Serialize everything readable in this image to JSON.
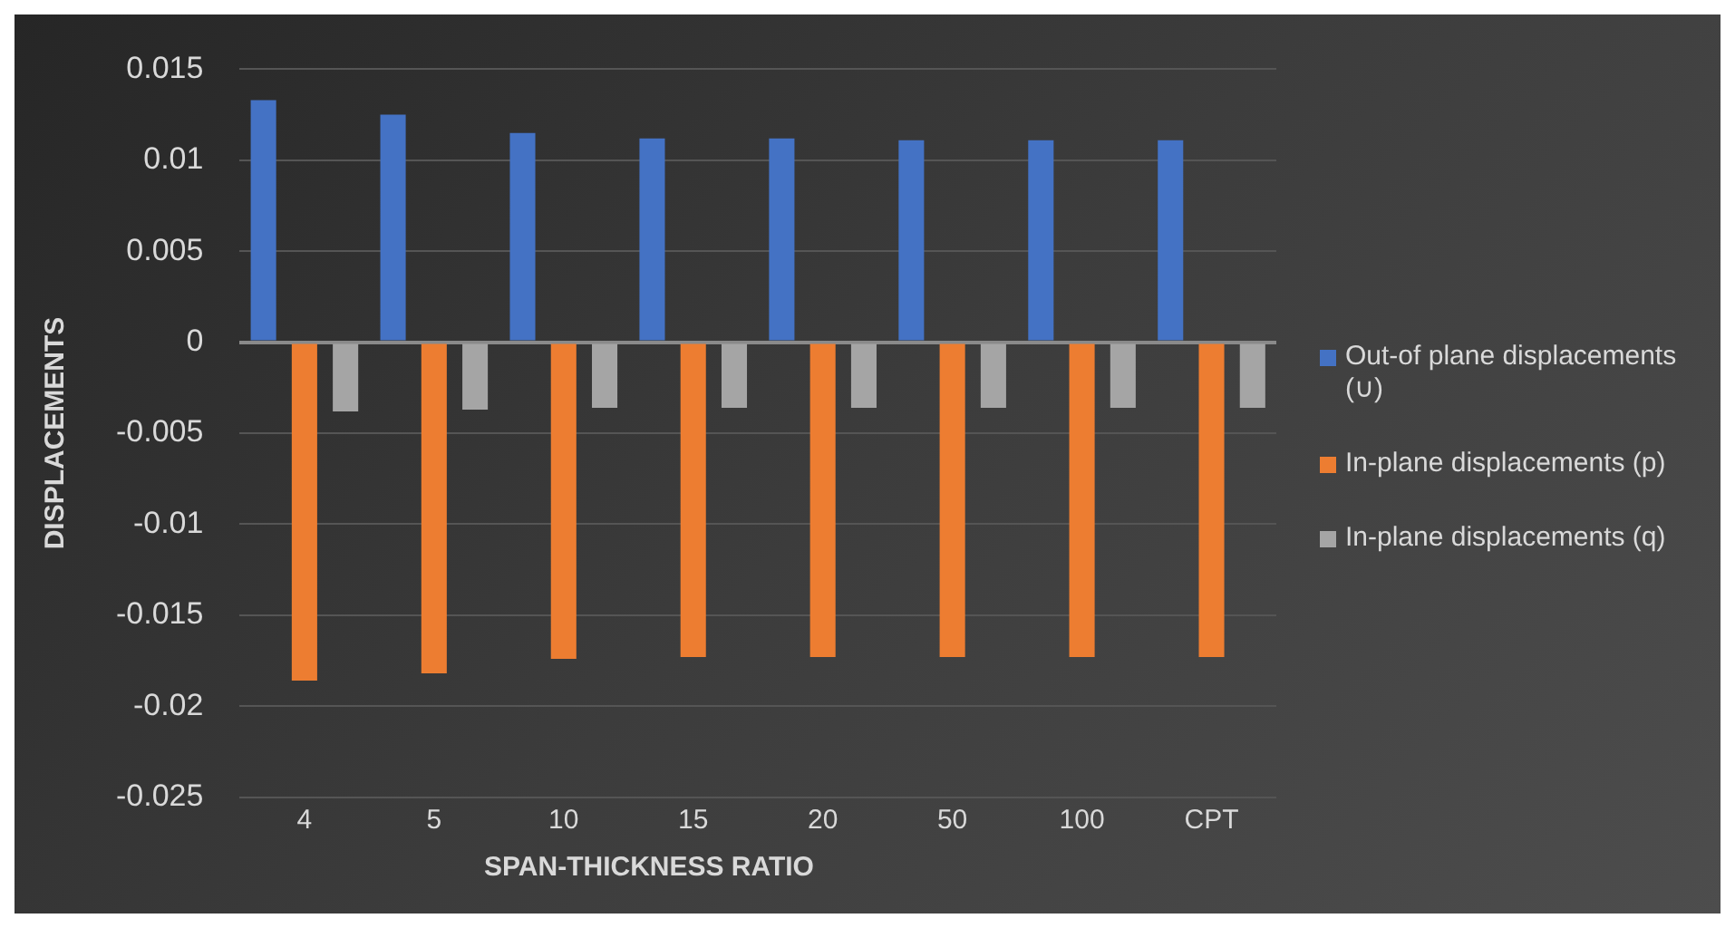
{
  "chart_data": {
    "type": "bar",
    "xlabel": "SPAN-THICKNESS RATIO",
    "ylabel": "DISPLACEMENTS",
    "categories": [
      "4",
      "5",
      "10",
      "15",
      "20",
      "50",
      "100",
      "CPT"
    ],
    "series": [
      {
        "name": "Out-of plane displacements (∪)",
        "color": "#4472c4",
        "values": [
          0.0133,
          0.0125,
          0.0115,
          0.0112,
          0.0112,
          0.0111,
          0.0111,
          0.0111
        ]
      },
      {
        "name": "In-plane displacements (p)",
        "color": "#ed7d31",
        "values": [
          -0.0186,
          -0.0182,
          -0.0174,
          -0.0173,
          -0.0173,
          -0.0173,
          -0.0173,
          -0.0173
        ]
      },
      {
        "name": "In-plane displacements (q)",
        "color": "#a5a5a5",
        "values": [
          -0.0038,
          -0.0037,
          -0.0036,
          -0.0036,
          -0.0036,
          -0.0036,
          -0.0036,
          -0.0036
        ]
      }
    ],
    "ylim": [
      -0.025,
      0.015
    ],
    "yticks": [
      -0.025,
      -0.02,
      -0.015,
      -0.01,
      -0.005,
      0,
      0.005,
      0.01,
      0.015
    ],
    "grid": "y",
    "legend": "right"
  }
}
